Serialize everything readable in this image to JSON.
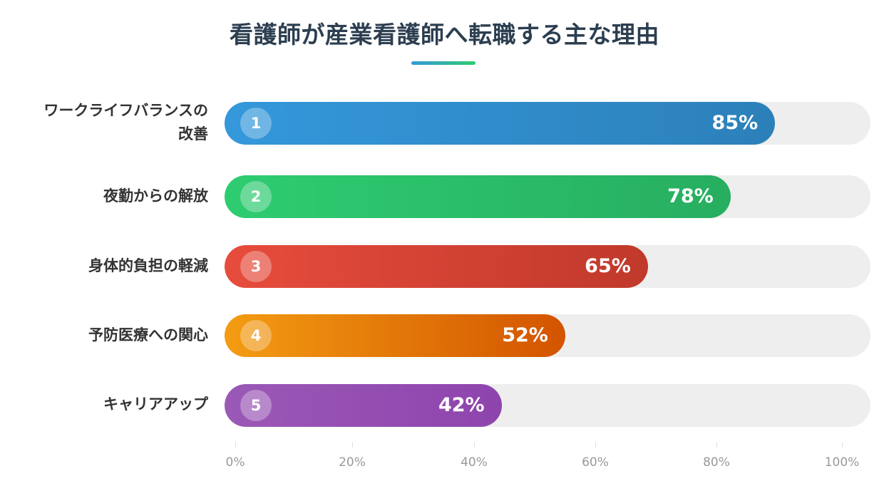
{
  "chart_data": {
    "type": "bar",
    "orientation": "horizontal",
    "title": "看護師が産業看護師へ転職する主な理由",
    "xlim": [
      0,
      100
    ],
    "ticks": [
      "0%",
      "20%",
      "40%",
      "60%",
      "80%",
      "100%"
    ],
    "grid": false,
    "bars": [
      {
        "rank": "1",
        "label_lines": [
          "ワークライフバランスの",
          "改善"
        ],
        "value": 85,
        "value_label": "85%",
        "color_start": "#3498db",
        "color_end": "#2c80b9"
      },
      {
        "rank": "2",
        "label_lines": [
          "夜勤からの解放"
        ],
        "value": 78,
        "value_label": "78%",
        "color_start": "#2ecc71",
        "color_end": "#27ae60"
      },
      {
        "rank": "3",
        "label_lines": [
          "身体的負担の軽減"
        ],
        "value": 65,
        "value_label": "65%",
        "color_start": "#e74c3c",
        "color_end": "#c0392b"
      },
      {
        "rank": "4",
        "label_lines": [
          "予防医療への関心"
        ],
        "value": 52,
        "value_label": "52%",
        "color_start": "#f39c12",
        "color_end": "#d35400"
      },
      {
        "rank": "5",
        "label_lines": [
          "キャリアアップ"
        ],
        "value": 42,
        "value_label": "42%",
        "color_start": "#9b59b6",
        "color_end": "#8e44ad"
      }
    ]
  }
}
